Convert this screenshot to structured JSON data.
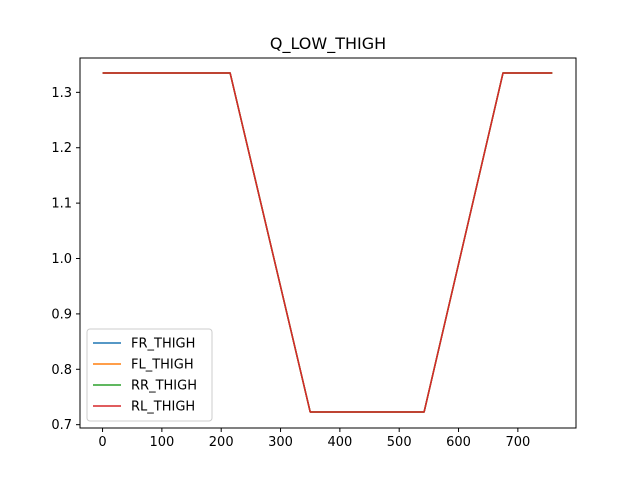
{
  "chart_data": {
    "type": "line",
    "title": "Q_LOW_THIGH",
    "xlabel": "",
    "ylabel": "",
    "xlim": [
      -38,
      798
    ],
    "ylim": [
      0.694,
      1.362
    ],
    "xticks": [
      0,
      100,
      200,
      300,
      400,
      500,
      600,
      700
    ],
    "yticks": [
      0.7,
      0.8,
      0.9,
      1.0,
      1.1,
      1.2,
      1.3
    ],
    "ytick_labels": [
      "0.7",
      "0.8",
      "0.9",
      "1.0",
      "1.1",
      "1.2",
      "1.3"
    ],
    "grid": false,
    "legend_position": "lower-left",
    "x": [
      0,
      215,
      350,
      542,
      675,
      758
    ],
    "series": [
      {
        "name": "FR_THIGH",
        "color": "#1f77b4",
        "values": [
          1.335,
          1.335,
          0.723,
          0.723,
          1.335,
          1.335
        ]
      },
      {
        "name": "FL_THIGH",
        "color": "#ff7f0e",
        "values": [
          1.335,
          1.335,
          0.723,
          0.723,
          1.335,
          1.335
        ]
      },
      {
        "name": "RR_THIGH",
        "color": "#2ca02c",
        "values": [
          1.335,
          1.335,
          0.723,
          0.723,
          1.335,
          1.335
        ]
      },
      {
        "name": "RL_THIGH",
        "color": "#d62728",
        "values": [
          1.335,
          1.335,
          0.723,
          0.723,
          1.335,
          1.335
        ]
      }
    ]
  }
}
